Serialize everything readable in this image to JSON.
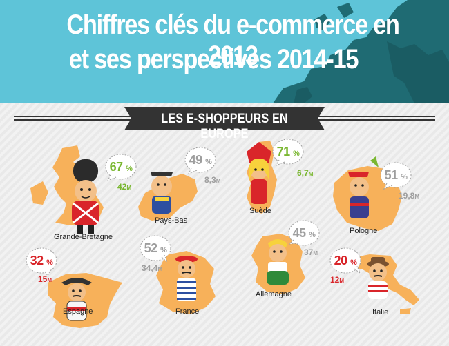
{
  "title": {
    "line1": "Chiffres clés du e-commerce en 2013",
    "line2": "et ses perspectives 2014-15"
  },
  "banner": "LES E-SHOPPEURS EN EUROPE",
  "colors": {
    "header_bg": "#5ec4d8",
    "map_dark": "#1f6b73",
    "country_fill": "#f7b15a",
    "banner_bg": "#333333",
    "green": "#7ab731",
    "gray": "#9e9e9e",
    "red": "#d9252a"
  },
  "countries": [
    {
      "name": "Grande-Bretagne",
      "percent": "67",
      "population": "42",
      "unit": "M",
      "tone": "green"
    },
    {
      "name": "Pays-Bas",
      "percent": "49",
      "population": "8,3",
      "unit": "M",
      "tone": "gray"
    },
    {
      "name": "Suède",
      "percent": "71",
      "population": "6,7",
      "unit": "M",
      "tone": "green"
    },
    {
      "name": "Pologne",
      "percent": "51",
      "population": "19,8",
      "unit": "M",
      "tone": "gray"
    },
    {
      "name": "Espagne",
      "percent": "32",
      "population": "15",
      "unit": "M",
      "tone": "red"
    },
    {
      "name": "France",
      "percent": "52",
      "population": "34,4",
      "unit": "M",
      "tone": "gray"
    },
    {
      "name": "Allemagne",
      "percent": "45",
      "population": "37",
      "unit": "M",
      "tone": "gray"
    },
    {
      "name": "Italie",
      "percent": "20",
      "population": "12",
      "unit": "M",
      "tone": "red"
    }
  ],
  "percent_sign": "%"
}
